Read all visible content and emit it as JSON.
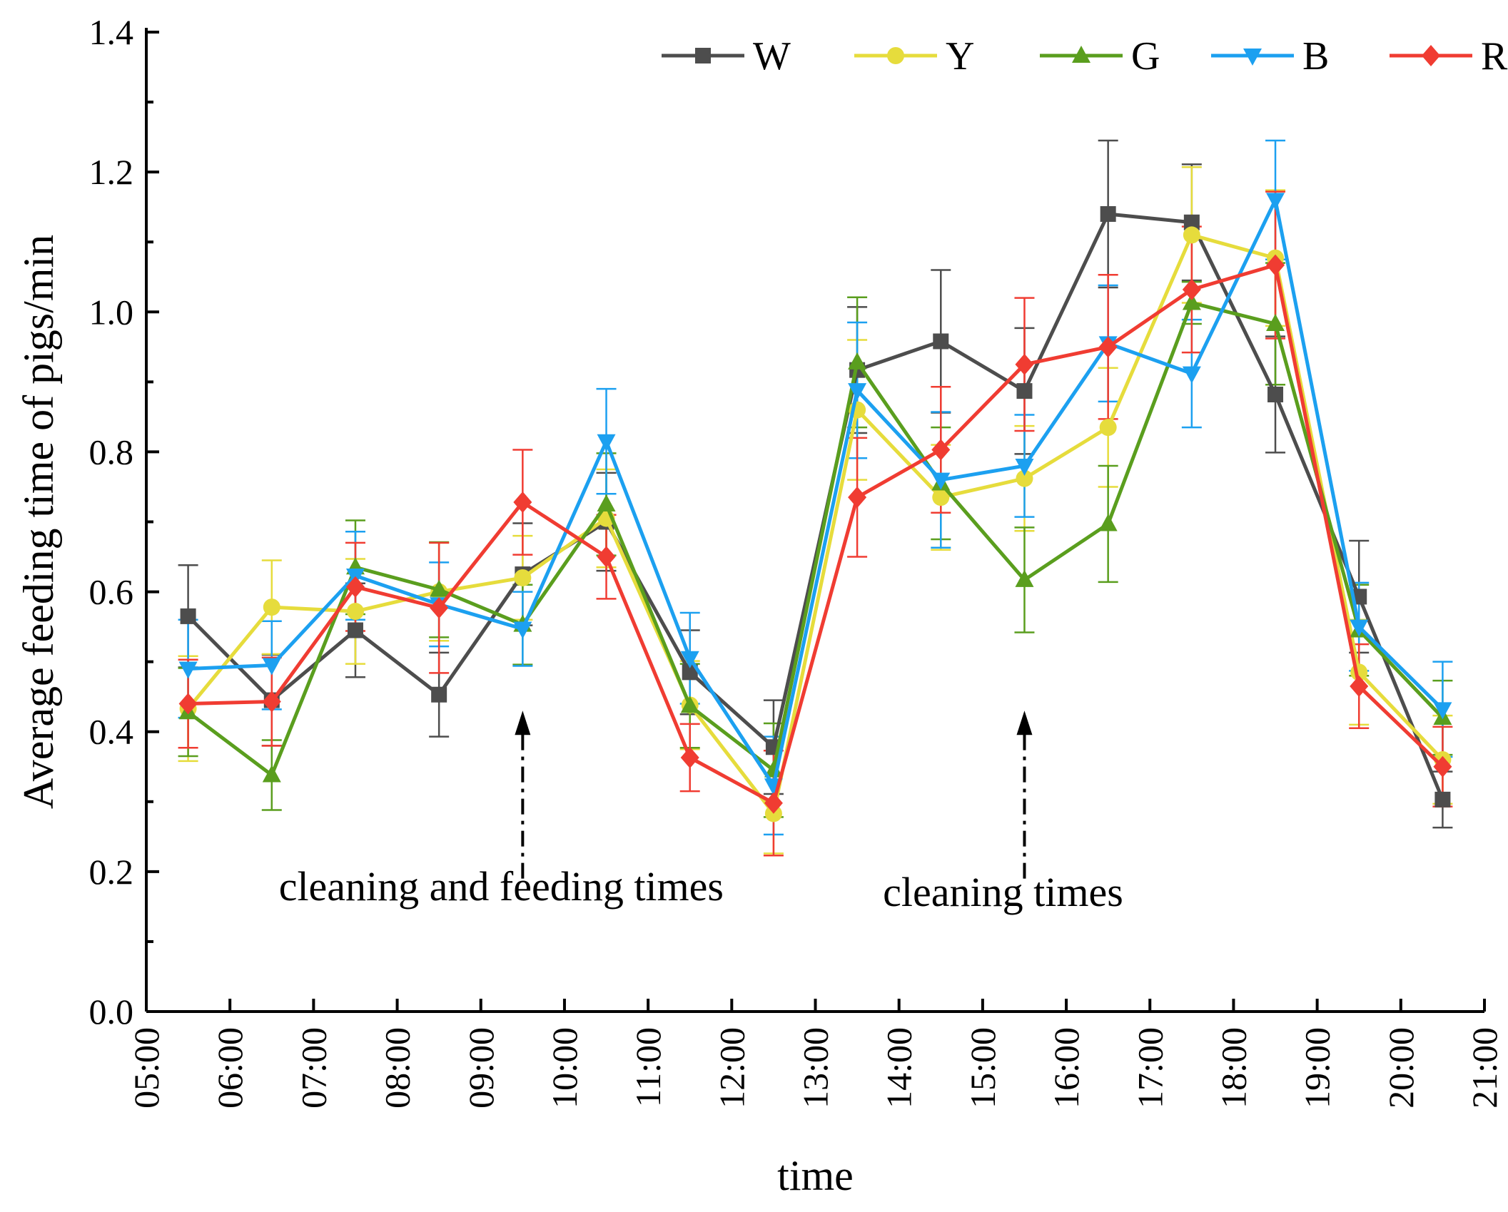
{
  "chart_data": {
    "type": "line",
    "title": "",
    "xlabel": "time",
    "ylabel": "Average feeding time of pigs/min",
    "ylim": [
      0.0,
      1.4
    ],
    "y_ticks": [
      "0.0",
      "0.2",
      "0.4",
      "0.6",
      "0.8",
      "1.0",
      "1.2",
      "1.4"
    ],
    "y_tick_values": [
      0.0,
      0.2,
      0.4,
      0.6,
      0.8,
      1.0,
      1.2,
      1.4
    ],
    "xlim": [
      5,
      21
    ],
    "x_ticks": [
      "05:00",
      "06:00",
      "07:00",
      "08:00",
      "09:00",
      "10:00",
      "11:00",
      "12:00",
      "13:00",
      "14:00",
      "15:00",
      "16:00",
      "17:00",
      "18:00",
      "19:00",
      "20:00",
      "21:00"
    ],
    "x_tick_values": [
      5,
      6,
      7,
      8,
      9,
      10,
      11,
      12,
      13,
      14,
      15,
      16,
      17,
      18,
      19,
      20,
      21
    ],
    "x": [
      5.5,
      6.5,
      7.5,
      8.5,
      9.5,
      10.5,
      11.5,
      12.5,
      13.5,
      14.5,
      15.5,
      16.5,
      17.5,
      18.5,
      19.5,
      20.5
    ],
    "legend_position": "top-right",
    "series": [
      {
        "name": "W",
        "color": "#4d4d4d",
        "marker": "square",
        "values": [
          0.565,
          0.445,
          0.545,
          0.453,
          0.625,
          0.7,
          0.485,
          0.378,
          0.917,
          0.958,
          0.887,
          1.14,
          1.128,
          0.882,
          0.593,
          0.303
        ],
        "errors": [
          0.073,
          0.065,
          0.067,
          0.06,
          0.073,
          0.07,
          0.06,
          0.067,
          0.09,
          0.102,
          0.09,
          0.105,
          0.083,
          0.083,
          0.08,
          0.04
        ]
      },
      {
        "name": "Y",
        "color": "#e6dc3c",
        "marker": "circle",
        "values": [
          0.433,
          0.578,
          0.572,
          0.6,
          0.62,
          0.705,
          0.438,
          0.283,
          0.86,
          0.735,
          0.762,
          0.835,
          1.11,
          1.077,
          0.485,
          0.36
        ],
        "errors": [
          0.075,
          0.067,
          0.075,
          0.07,
          0.06,
          0.07,
          0.063,
          0.057,
          0.1,
          0.075,
          0.075,
          0.085,
          0.097,
          0.097,
          0.075,
          0.063
        ]
      },
      {
        "name": "G",
        "color": "#5a9e1e",
        "marker": "triangle-up",
        "values": [
          0.428,
          0.338,
          0.635,
          0.603,
          0.553,
          0.725,
          0.437,
          0.345,
          0.928,
          0.755,
          0.617,
          0.697,
          1.013,
          0.983,
          0.545,
          0.42
        ],
        "errors": [
          0.063,
          0.05,
          0.067,
          0.068,
          0.057,
          0.073,
          0.06,
          0.067,
          0.093,
          0.08,
          0.075,
          0.083,
          0.03,
          0.087,
          0.065,
          0.053
        ]
      },
      {
        "name": "B",
        "color": "#1ca0f0",
        "marker": "triangle-down",
        "values": [
          0.49,
          0.495,
          0.623,
          0.582,
          0.547,
          0.815,
          0.505,
          0.323,
          0.888,
          0.76,
          0.78,
          0.955,
          0.912,
          1.16,
          0.55,
          0.432
        ],
        "errors": [
          0.07,
          0.063,
          0.063,
          0.06,
          0.053,
          0.075,
          0.065,
          0.07,
          0.097,
          0.097,
          0.073,
          0.083,
          0.077,
          0.085,
          0.063,
          0.068
        ]
      },
      {
        "name": "R",
        "color": "#f03c32",
        "marker": "diamond",
        "values": [
          0.44,
          0.443,
          0.607,
          0.577,
          0.728,
          0.65,
          0.363,
          0.298,
          0.735,
          0.803,
          0.925,
          0.95,
          1.032,
          1.067,
          0.465,
          0.35
        ],
        "errors": [
          0.063,
          0.063,
          0.063,
          0.093,
          0.075,
          0.06,
          0.048,
          0.075,
          0.085,
          0.09,
          0.095,
          0.103,
          0.09,
          0.105,
          0.06,
          0.057
        ]
      }
    ],
    "annotations": [
      {
        "text": "cleaning and feeding times",
        "x": 9.5
      },
      {
        "text": "cleaning times",
        "x": 15.5
      }
    ]
  }
}
